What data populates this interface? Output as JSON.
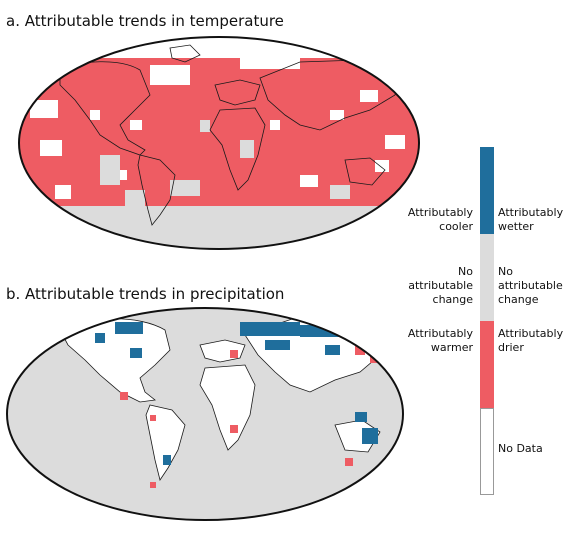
{
  "panels": {
    "a_title": "a. Attributable trends in temperature",
    "b_title": "b. Attributable trends in precipitation"
  },
  "legend": {
    "colors": {
      "top": "#1f6e9c",
      "middle": "#dcdcdc",
      "bottom": "#ee5c63",
      "nodata": "#ffffff"
    },
    "temperature": {
      "top_line1": "Attributably",
      "top_line2": "cooler",
      "mid_line1": "No",
      "mid_line2": "attributable",
      "mid_line3": "change",
      "bottom_line1": "Attributably",
      "bottom_line2": "warmer"
    },
    "precipitation": {
      "top_line1": "Attributably",
      "top_line2": "wetter",
      "mid_line1": "No",
      "mid_line2": "attributable",
      "mid_line3": "change",
      "bottom_line1": "Attributably",
      "bottom_line2": "drier",
      "nodata": "No Data"
    }
  }
}
